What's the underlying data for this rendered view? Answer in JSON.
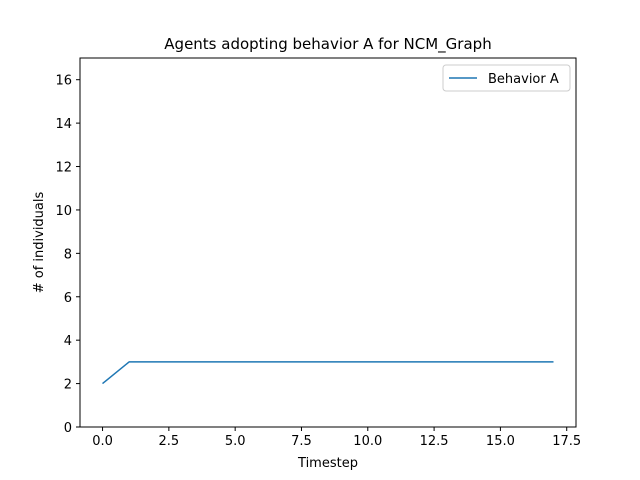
{
  "chart_data": {
    "type": "line",
    "title": "Agents adopting behavior A for NCM_Graph",
    "xlabel": "Timestep",
    "ylabel": "# of individuals",
    "xlim": [
      -0.85,
      17.85
    ],
    "ylim": [
      0,
      17
    ],
    "xticks": [
      0.0,
      2.5,
      5.0,
      7.5,
      10.0,
      12.5,
      15.0,
      17.5
    ],
    "xtick_labels": [
      "0.0",
      "2.5",
      "5.0",
      "7.5",
      "10.0",
      "12.5",
      "15.0",
      "17.5"
    ],
    "yticks": [
      0,
      2,
      4,
      6,
      8,
      10,
      12,
      14,
      16
    ],
    "ytick_labels": [
      "0",
      "2",
      "4",
      "6",
      "8",
      "10",
      "12",
      "14",
      "16"
    ],
    "grid": false,
    "legend_position": "top-right",
    "series": [
      {
        "name": "Behavior A",
        "color": "#1f77b4",
        "x": [
          0,
          1,
          2,
          3,
          4,
          5,
          6,
          7,
          8,
          9,
          10,
          11,
          12,
          13,
          14,
          15,
          16,
          17
        ],
        "y": [
          2,
          3,
          3,
          3,
          3,
          3,
          3,
          3,
          3,
          3,
          3,
          3,
          3,
          3,
          3,
          3,
          3,
          3
        ]
      }
    ]
  }
}
